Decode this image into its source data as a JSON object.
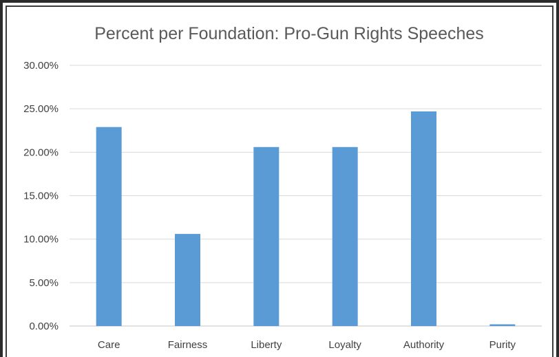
{
  "chart_data": {
    "type": "bar",
    "title": "Percent per Foundation: Pro-Gun Rights Speeches",
    "xlabel": "",
    "ylabel": "",
    "categories": [
      "Care",
      "Fairness",
      "Liberty",
      "Loyalty",
      "Authority",
      "Purity"
    ],
    "values": [
      22.9,
      10.6,
      20.6,
      20.6,
      24.7,
      0.2
    ],
    "ylim": [
      0,
      30
    ],
    "yticks": [
      0,
      5,
      10,
      15,
      20,
      25,
      30
    ],
    "ytick_labels": [
      "0.00%",
      "5.00%",
      "10.00%",
      "15.00%",
      "20.00%",
      "25.00%",
      "30.00%"
    ],
    "grid": true,
    "legend": "none",
    "bar_color": "#5b9bd5",
    "grid_color": "#d9d9d9"
  }
}
